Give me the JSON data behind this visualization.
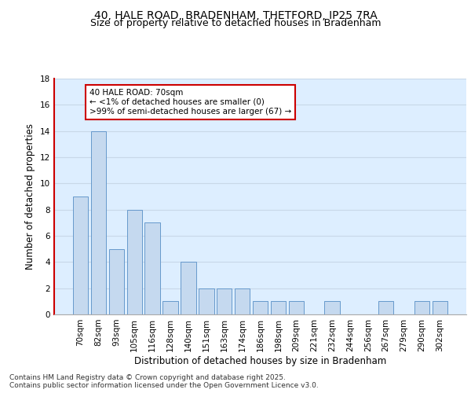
{
  "title1": "40, HALE ROAD, BRADENHAM, THETFORD, IP25 7RA",
  "title2": "Size of property relative to detached houses in Bradenham",
  "xlabel": "Distribution of detached houses by size in Bradenham",
  "ylabel": "Number of detached properties",
  "categories": [
    "70sqm",
    "82sqm",
    "93sqm",
    "105sqm",
    "116sqm",
    "128sqm",
    "140sqm",
    "151sqm",
    "163sqm",
    "174sqm",
    "186sqm",
    "198sqm",
    "209sqm",
    "221sqm",
    "232sqm",
    "244sqm",
    "256sqm",
    "267sqm",
    "279sqm",
    "290sqm",
    "302sqm"
  ],
  "values": [
    9,
    14,
    5,
    8,
    7,
    1,
    4,
    2,
    2,
    2,
    1,
    1,
    1,
    0,
    1,
    0,
    0,
    1,
    0,
    1,
    1
  ],
  "bar_color": "#c5d9ef",
  "bar_edge_color": "#6699cc",
  "left_spine_color": "#cc0000",
  "annotation_line1": "40 HALE ROAD: 70sqm",
  "annotation_line2": "← <1% of detached houses are smaller (0)",
  "annotation_line3": ">99% of semi-detached houses are larger (67) →",
  "annotation_box_color": "#ffffff",
  "annotation_box_edge_color": "#cc0000",
  "ylim": [
    0,
    18
  ],
  "yticks": [
    0,
    2,
    4,
    6,
    8,
    10,
    12,
    14,
    16,
    18
  ],
  "grid_color": "#c8d8e8",
  "background_color": "#ddeeff",
  "footer_text": "Contains HM Land Registry data © Crown copyright and database right 2025.\nContains public sector information licensed under the Open Government Licence v3.0.",
  "title_fontsize": 10,
  "subtitle_fontsize": 9,
  "axis_label_fontsize": 8.5,
  "tick_fontsize": 7.5,
  "annotation_fontsize": 7.5,
  "footer_fontsize": 6.5
}
